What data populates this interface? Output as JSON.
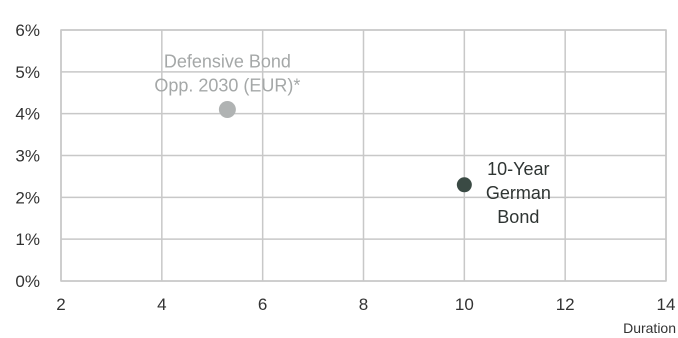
{
  "chart_data": {
    "type": "scatter",
    "title": "",
    "xlabel": "Duration",
    "ylabel": "",
    "xlim": [
      2,
      14
    ],
    "ylim": [
      0,
      6
    ],
    "x_ticks": [
      2,
      4,
      6,
      8,
      10,
      12,
      14
    ],
    "y_ticks": [
      0,
      1,
      2,
      3,
      4,
      5,
      6
    ],
    "y_tick_format": "percent",
    "grid": true,
    "legend": "none",
    "series": [
      {
        "label_lines": [
          "Defensive Bond",
          "Opp. 2030 (EUR)*"
        ],
        "x": [
          5.3
        ],
        "y": [
          4.1
        ],
        "color": "#b0b3b3",
        "label_position": "above"
      },
      {
        "label_lines": [
          "10-Year",
          "German",
          "Bond"
        ],
        "x": [
          10.0
        ],
        "y": [
          2.3
        ],
        "color": "#3a4a44",
        "label_position": "right"
      }
    ],
    "colors": {
      "grid": "#c8c8c8",
      "frame": "#c8c8c8",
      "text": "#333333"
    }
  }
}
